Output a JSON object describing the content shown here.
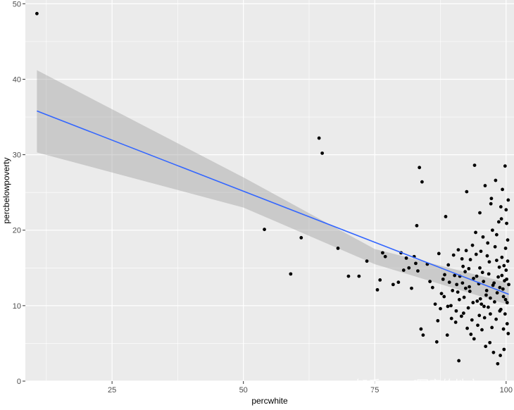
{
  "chart_data": {
    "type": "scatter",
    "xlabel": "percwhite",
    "ylabel": "percbelowpoverty",
    "xlim": [
      8.5,
      101.5
    ],
    "ylim": [
      0,
      50.5
    ],
    "x_ticks": [
      25,
      50,
      75,
      100
    ],
    "x_tick_labels": [
      "25",
      "50",
      "75",
      "100"
    ],
    "y_ticks": [
      0,
      10,
      20,
      30,
      40,
      50
    ],
    "y_tick_labels": [
      "0",
      "10",
      "20",
      "30",
      "40",
      "50"
    ],
    "grid": true,
    "background": "#ebebeb",
    "grid_color": "#ffffff",
    "point_color": "#000000",
    "fit": {
      "method": "lm",
      "color": "#3366ff",
      "band_color": "#999999",
      "line": [
        [
          10.7,
          35.8
        ],
        [
          100.5,
          11.5
        ]
      ],
      "band_upper": [
        [
          10.7,
          41.2
        ],
        [
          50,
          27.0
        ],
        [
          75,
          17.5
        ],
        [
          100.5,
          13.0
        ]
      ],
      "band_lower": [
        [
          10.7,
          30.3
        ],
        [
          50,
          23.0
        ],
        [
          75,
          15.5
        ],
        [
          100.5,
          10.1
        ]
      ]
    },
    "points": [
      [
        10.7,
        48.7
      ],
      [
        64.4,
        32.2
      ],
      [
        65,
        30.2
      ],
      [
        59,
        14.2
      ],
      [
        54,
        20.1
      ],
      [
        61,
        19.0
      ],
      [
        68,
        17.6
      ],
      [
        70,
        13.9
      ],
      [
        72,
        13.9
      ],
      [
        73.5,
        15.9
      ],
      [
        75.5,
        12.1
      ],
      [
        76,
        13.4
      ],
      [
        76.5,
        17.0
      ],
      [
        77,
        16.5
      ],
      [
        78.5,
        12.8
      ],
      [
        79.5,
        13.1
      ],
      [
        80,
        17.0
      ],
      [
        80.5,
        14.7
      ],
      [
        81,
        16.3
      ],
      [
        81.5,
        15.0
      ],
      [
        82,
        12.3
      ],
      [
        82.5,
        16.5
      ],
      [
        82.8,
        15.6
      ],
      [
        83,
        20.6
      ],
      [
        83.2,
        14.6
      ],
      [
        83.5,
        28.3
      ],
      [
        83.8,
        6.9
      ],
      [
        84,
        26.4
      ],
      [
        84.2,
        6.1
      ],
      [
        85,
        15.5
      ],
      [
        85.5,
        13.2
      ],
      [
        86,
        12.4
      ],
      [
        86.5,
        10.2
      ],
      [
        86.8,
        5.2
      ],
      [
        87,
        8.0
      ],
      [
        87.2,
        16.9
      ],
      [
        87.5,
        9.6
      ],
      [
        88,
        13.5
      ],
      [
        88.2,
        11.2
      ],
      [
        88.5,
        21.8
      ],
      [
        88.8,
        6.1
      ],
      [
        89,
        15.4
      ],
      [
        89.2,
        13.1
      ],
      [
        89.5,
        10.0
      ],
      [
        89.8,
        12.0
      ],
      [
        90,
        16.7
      ],
      [
        90.2,
        14.0
      ],
      [
        90.5,
        9.3
      ],
      [
        90.8,
        11.8
      ],
      [
        91,
        2.7
      ],
      [
        91.2,
        13.9
      ],
      [
        91.5,
        8.6
      ],
      [
        91.8,
        15.2
      ],
      [
        92,
        11.1
      ],
      [
        92.2,
        14.5
      ],
      [
        92.5,
        25.1
      ],
      [
        92.8,
        9.7
      ],
      [
        93,
        12.5
      ],
      [
        93.2,
        16.1
      ],
      [
        93.5,
        8.1
      ],
      [
        93.8,
        13.6
      ],
      [
        94,
        28.6
      ],
      [
        94.2,
        19.7
      ],
      [
        94.5,
        10.6
      ],
      [
        94.8,
        12.9
      ],
      [
        95,
        22.3
      ],
      [
        95.2,
        17.2
      ],
      [
        95.5,
        14.4
      ],
      [
        95.8,
        9.9
      ],
      [
        96,
        25.9
      ],
      [
        96.2,
        11.4
      ],
      [
        96.5,
        18.3
      ],
      [
        96.8,
        15.8
      ],
      [
        97,
        8.9
      ],
      [
        97.2,
        24.2
      ],
      [
        97.5,
        12.7
      ],
      [
        97.8,
        10.5
      ],
      [
        98,
        26.6
      ],
      [
        98.2,
        19.4
      ],
      [
        98.5,
        13.8
      ],
      [
        98.8,
        9.3
      ],
      [
        99,
        23.1
      ],
      [
        99.2,
        16.4
      ],
      [
        99.5,
        11.2
      ],
      [
        99.8,
        28.5
      ],
      [
        100,
        14.7
      ],
      [
        100.2,
        10.4
      ],
      [
        100.4,
        6.3
      ],
      [
        99.6,
        4.2
      ],
      [
        98.9,
        3.4
      ],
      [
        98.4,
        2.3
      ],
      [
        97.6,
        3.8
      ],
      [
        96.9,
        5.1
      ],
      [
        96.1,
        4.6
      ],
      [
        95.4,
        6.8
      ],
      [
        94.6,
        7.4
      ],
      [
        93.9,
        5.6
      ],
      [
        93.3,
        6.2
      ],
      [
        92.6,
        7.0
      ],
      [
        91.9,
        9.0
      ],
      [
        100.3,
        18.7
      ],
      [
        100.1,
        20.9
      ],
      [
        99.9,
        17.6
      ],
      [
        99.7,
        13.3
      ],
      [
        99.4,
        12.2
      ],
      [
        99.1,
        21.5
      ],
      [
        98.7,
        15.1
      ],
      [
        98.3,
        11.7
      ],
      [
        97.9,
        17.8
      ],
      [
        97.4,
        20.0
      ],
      [
        96.7,
        14.2
      ],
      [
        96.3,
        12.0
      ],
      [
        95.6,
        19.1
      ],
      [
        95.1,
        10.9
      ],
      [
        94.3,
        16.8
      ],
      [
        93.6,
        18.0
      ],
      [
        92.9,
        14.9
      ],
      [
        92.3,
        12.3
      ],
      [
        91.6,
        16.2
      ],
      [
        90.9,
        17.4
      ],
      [
        90.4,
        7.8
      ],
      [
        89.6,
        8.3
      ],
      [
        88.9,
        9.9
      ],
      [
        88.3,
        14.1
      ],
      [
        87.7,
        11.6
      ],
      [
        100.4,
        24.0
      ],
      [
        100.0,
        22.7
      ],
      [
        99.3,
        25.4
      ],
      [
        98.6,
        21.1
      ],
      [
        97.1,
        23.5
      ],
      [
        100.2,
        7.6
      ],
      [
        99.8,
        8.9
      ],
      [
        99.5,
        6.9
      ],
      [
        99.0,
        9.5
      ],
      [
        98.1,
        8.2
      ],
      [
        97.3,
        7.1
      ],
      [
        96.6,
        9.8
      ],
      [
        95.9,
        8.4
      ],
      [
        95.3,
        10.2
      ],
      [
        94.9,
        8.7
      ],
      [
        100.5,
        12.8
      ],
      [
        100.3,
        15.9
      ],
      [
        100.1,
        13.5
      ],
      [
        99.9,
        10.8
      ],
      [
        99.6,
        15.3
      ],
      [
        99.2,
        14.0
      ],
      [
        98.8,
        12.4
      ],
      [
        98.2,
        16.0
      ],
      [
        97.7,
        13.0
      ],
      [
        97.0,
        11.0
      ],
      [
        96.4,
        16.6
      ],
      [
        95.7,
        13.2
      ],
      [
        95.0,
        15.0
      ],
      [
        94.4,
        13.9
      ],
      [
        93.7,
        10.4
      ],
      [
        93.1,
        11.9
      ],
      [
        92.4,
        17.3
      ],
      [
        91.7,
        13.0
      ],
      [
        91.1,
        10.8
      ],
      [
        90.6,
        12.8
      ]
    ]
  }
}
